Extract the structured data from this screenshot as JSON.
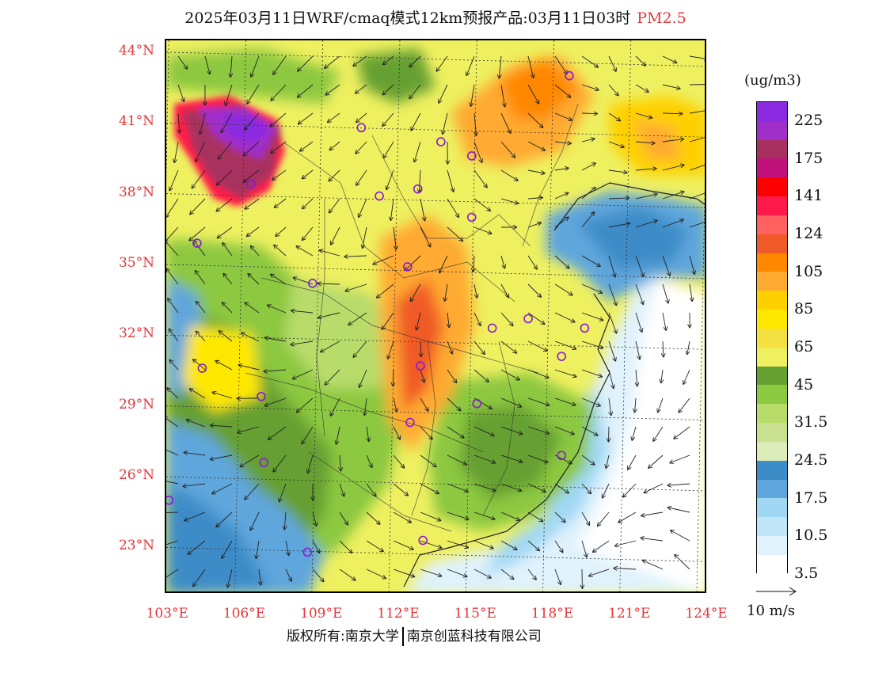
{
  "header": {
    "title": "2025年03月11日WRF/cmaq模式12km预报产品:03月11日03时",
    "pollutant": "PM2.5"
  },
  "map": {
    "lat_labels": [
      "44°N",
      "41°N",
      "38°N",
      "35°N",
      "32°N",
      "29°N",
      "26°N",
      "23°N"
    ],
    "lon_labels": [
      "103°E",
      "106°E",
      "109°E",
      "112°E",
      "115°E",
      "118°E",
      "121°E",
      "124°E"
    ],
    "lat_values": [
      44,
      41,
      38,
      35,
      32,
      29,
      26,
      23
    ],
    "lon_values": [
      103,
      106,
      109,
      112,
      115,
      118,
      121,
      124
    ],
    "lat_range": [
      21.0,
      44.5
    ],
    "lon_range": [
      102.9,
      124.0
    ],
    "city_markers": [
      {
        "lon": 118.6,
        "lat": 43.0
      },
      {
        "lon": 110.5,
        "lat": 40.8
      },
      {
        "lon": 113.6,
        "lat": 40.2
      },
      {
        "lon": 114.8,
        "lat": 39.6
      },
      {
        "lon": 106.2,
        "lat": 38.4
      },
      {
        "lon": 111.2,
        "lat": 37.9
      },
      {
        "lon": 112.7,
        "lat": 38.2
      },
      {
        "lon": 114.8,
        "lat": 37.0
      },
      {
        "lon": 104.1,
        "lat": 35.9
      },
      {
        "lon": 112.3,
        "lat": 34.9
      },
      {
        "lon": 108.6,
        "lat": 34.2
      },
      {
        "lon": 115.6,
        "lat": 32.3
      },
      {
        "lon": 117.0,
        "lat": 32.7
      },
      {
        "lon": 119.2,
        "lat": 32.3
      },
      {
        "lon": 118.3,
        "lat": 31.1
      },
      {
        "lon": 104.3,
        "lat": 30.6
      },
      {
        "lon": 112.8,
        "lat": 30.7
      },
      {
        "lon": 106.6,
        "lat": 29.4
      },
      {
        "lon": 115.0,
        "lat": 29.1
      },
      {
        "lon": 112.4,
        "lat": 28.3
      },
      {
        "lon": 118.3,
        "lat": 26.9
      },
      {
        "lon": 106.7,
        "lat": 26.6
      },
      {
        "lon": 103.0,
        "lat": 25.0
      },
      {
        "lon": 108.4,
        "lat": 22.8
      },
      {
        "lon": 112.9,
        "lat": 23.3
      }
    ]
  },
  "legend": {
    "unit": "(ug/m3)",
    "colors": [
      "#8a2be2",
      "#a02ec8",
      "#a8305e",
      "#c0127a",
      "#ff0000",
      "#ff1a4a",
      "#ff6060",
      "#f05a28",
      "#ff8800",
      "#ffaa30",
      "#ffd000",
      "#ffe800",
      "#f4e040",
      "#eef060",
      "#66a030",
      "#8cc840",
      "#b8dc6a",
      "#c8e090",
      "#dcecb8",
      "#3c8cc8",
      "#5ea6dc",
      "#a0d8f4",
      "#c0e4f8",
      "#e0f2fc",
      "#ffffff"
    ],
    "labels": [
      "225",
      "175",
      "141",
      "124",
      "105",
      "85",
      "65",
      "45",
      "31.5",
      "24.5",
      "17.5",
      "10.5",
      "3.5"
    ],
    "wind_reference": "10 m/s"
  },
  "footer": {
    "copyright_left": "版权所有:南京大学",
    "copyright_right": "南京创蓝科技有限公司"
  }
}
